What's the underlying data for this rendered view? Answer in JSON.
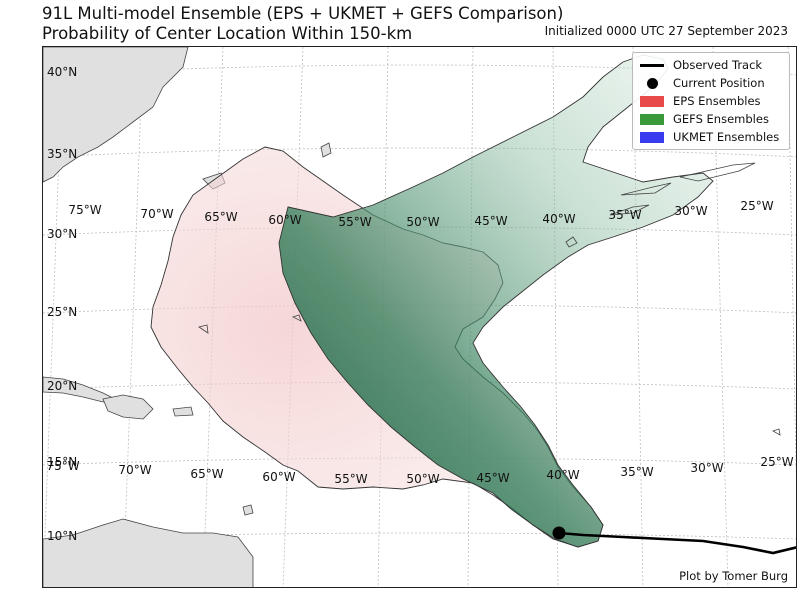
{
  "header": {
    "title_line1": "91L Multi-model Ensemble (EPS + UKMET + GEFS Comparison)",
    "title_line2": "Probability of Center Location Within 150-km",
    "initialized": "Initialized 0000 UTC 27 September 2023"
  },
  "lat_labels": [
    "40°N",
    "35°N",
    "30°N",
    "25°N",
    "20°N",
    "15°N",
    "10°N"
  ],
  "lon_labels_upper": [
    "75°W",
    "70°W",
    "65°W",
    "60°W",
    "55°W",
    "50°W",
    "45°W",
    "40°W",
    "35°W",
    "30°W",
    "25°W"
  ],
  "lon_labels_lower": [
    "75°W",
    "70°W",
    "65°W",
    "60°W",
    "55°W",
    "50°W",
    "45°W",
    "40°W",
    "35°W",
    "30°W",
    "25°W"
  ],
  "legend": {
    "observed_track": "Observed Track",
    "current_position": "Current Position",
    "eps": "EPS Ensembles",
    "gefs": "GEFS Ensembles",
    "ukmet": "UKMET Ensembles"
  },
  "colors": {
    "eps": "#e84a4a",
    "gefs": "#3a9a3a",
    "ukmet": "#3a3aee",
    "track": "#000000",
    "land": "#e0e0e0"
  },
  "credit": "Plot by Tomer Burg"
}
